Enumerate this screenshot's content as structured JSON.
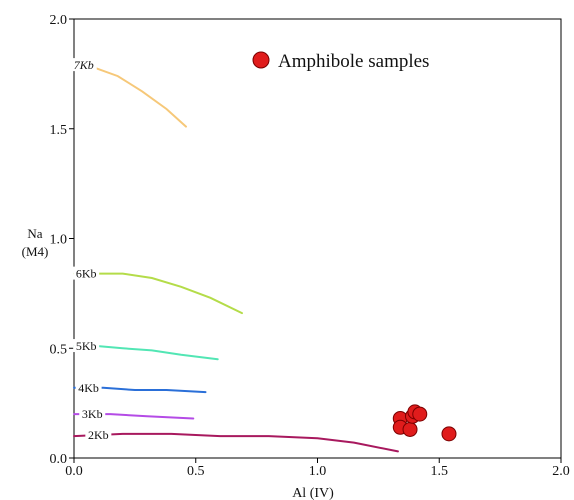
{
  "chart_data": {
    "type": "scatter",
    "xlabel": "Al (IV)",
    "ylabel": [
      "Na",
      "(M4)"
    ],
    "xlim": [
      0,
      2
    ],
    "ylim": [
      0,
      2
    ],
    "x_ticks": [
      "0.0",
      "0.5",
      "1.0",
      "1.5",
      "2.0"
    ],
    "y_ticks": [
      "0.0",
      "0.5",
      "1.0",
      "1.5",
      "2.0"
    ],
    "x_tick_values": [
      0,
      0.5,
      1.0,
      1.5,
      2.0
    ],
    "y_tick_values": [
      0,
      0.5,
      1.0,
      1.5,
      2.0
    ],
    "legend": {
      "label": "Amphibole samples",
      "position": "top-right"
    },
    "isobars": [
      {
        "label": "7Kb",
        "color": "#f6c879",
        "points": [
          [
            0.0,
            1.8
          ],
          [
            0.08,
            1.78
          ],
          [
            0.18,
            1.74
          ],
          [
            0.28,
            1.67
          ],
          [
            0.38,
            1.59
          ],
          [
            0.46,
            1.51
          ]
        ]
      },
      {
        "label": "6Kb",
        "color": "#b4dc49",
        "points": [
          [
            0.0,
            0.84
          ],
          [
            0.1,
            0.84
          ],
          [
            0.2,
            0.84
          ],
          [
            0.32,
            0.82
          ],
          [
            0.44,
            0.78
          ],
          [
            0.56,
            0.73
          ],
          [
            0.69,
            0.66
          ]
        ]
      },
      {
        "label": "5Kb",
        "color": "#52e6b4",
        "points": [
          [
            0.0,
            0.51
          ],
          [
            0.1,
            0.51
          ],
          [
            0.2,
            0.5
          ],
          [
            0.32,
            0.49
          ],
          [
            0.44,
            0.47
          ],
          [
            0.59,
            0.45
          ]
        ]
      },
      {
        "label": "4Kb",
        "color": "#2a6fd8",
        "points": [
          [
            0.0,
            0.32
          ],
          [
            0.12,
            0.32
          ],
          [
            0.25,
            0.31
          ],
          [
            0.38,
            0.31
          ],
          [
            0.54,
            0.3
          ]
        ]
      },
      {
        "label": "3Kb",
        "color": "#b44be6",
        "points": [
          [
            0.0,
            0.2
          ],
          [
            0.15,
            0.2
          ],
          [
            0.3,
            0.19
          ],
          [
            0.49,
            0.18
          ]
        ]
      },
      {
        "label": "2Kb",
        "color": "#a8195e",
        "points": [
          [
            0.0,
            0.1
          ],
          [
            0.2,
            0.11
          ],
          [
            0.4,
            0.11
          ],
          [
            0.6,
            0.1
          ],
          [
            0.8,
            0.1
          ],
          [
            1.0,
            0.09
          ],
          [
            1.15,
            0.07
          ],
          [
            1.33,
            0.03
          ]
        ]
      }
    ],
    "samples": {
      "name": "Amphibole samples",
      "color": "#e01c1c",
      "points": [
        [
          1.34,
          0.18
        ],
        [
          1.34,
          0.14
        ],
        [
          1.38,
          0.13
        ],
        [
          1.39,
          0.19
        ],
        [
          1.4,
          0.21
        ],
        [
          1.42,
          0.2
        ],
        [
          1.54,
          0.11
        ]
      ]
    }
  }
}
